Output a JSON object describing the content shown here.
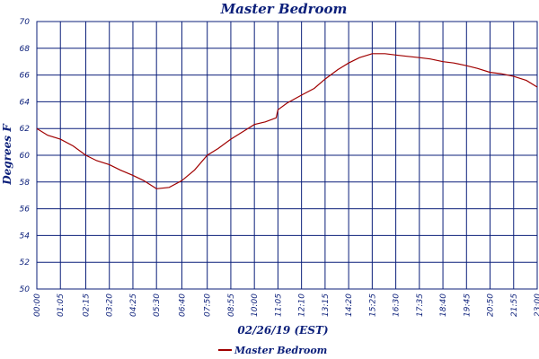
{
  "chart_data": {
    "type": "line",
    "title": "Master Bedroom",
    "xlabel": "02/26/19 (EST)",
    "ylabel": "Degrees F",
    "ylim": [
      50,
      70
    ],
    "yticks": [
      50,
      52,
      54,
      56,
      58,
      60,
      62,
      64,
      66,
      68,
      70
    ],
    "xticks": [
      "00:00",
      "01:05",
      "02:15",
      "03:20",
      "04:25",
      "05:30",
      "06:40",
      "07:50",
      "08:55",
      "10:00",
      "11:05",
      "12:10",
      "13:15",
      "14:20",
      "15:25",
      "16:30",
      "17:35",
      "18:40",
      "19:45",
      "20:50",
      "21:55",
      "23:00"
    ],
    "xlim": [
      "00:00",
      "23:00"
    ],
    "grid": true,
    "legend_position": "bottom",
    "colors": {
      "series": "#a00000",
      "grid": "#0b1f7a",
      "text": "#0b1f7a"
    },
    "series": [
      {
        "name": "Master Bedroom",
        "x": [
          "00:00",
          "00:30",
          "01:05",
          "01:40",
          "02:15",
          "02:45",
          "03:20",
          "03:50",
          "04:25",
          "04:55",
          "05:30",
          "06:05",
          "06:40",
          "07:15",
          "07:50",
          "08:20",
          "08:55",
          "09:30",
          "10:00",
          "10:30",
          "11:00",
          "11:05",
          "11:30",
          "12:10",
          "12:45",
          "13:15",
          "13:50",
          "14:20",
          "14:50",
          "15:25",
          "16:00",
          "16:30",
          "17:00",
          "17:35",
          "18:05",
          "18:40",
          "19:10",
          "19:45",
          "20:15",
          "20:50",
          "21:20",
          "21:55",
          "22:30",
          "23:00"
        ],
        "y": [
          62.0,
          61.5,
          61.2,
          60.7,
          60.0,
          59.6,
          59.3,
          58.9,
          58.5,
          58.1,
          57.5,
          57.6,
          58.1,
          58.9,
          60.0,
          60.5,
          61.2,
          61.8,
          62.3,
          62.5,
          62.8,
          63.4,
          63.9,
          64.5,
          65.0,
          65.7,
          66.4,
          66.9,
          67.3,
          67.6,
          67.6,
          67.5,
          67.4,
          67.3,
          67.2,
          67.0,
          66.9,
          66.7,
          66.5,
          66.2,
          66.1,
          65.9,
          65.6,
          65.1
        ]
      }
    ]
  }
}
